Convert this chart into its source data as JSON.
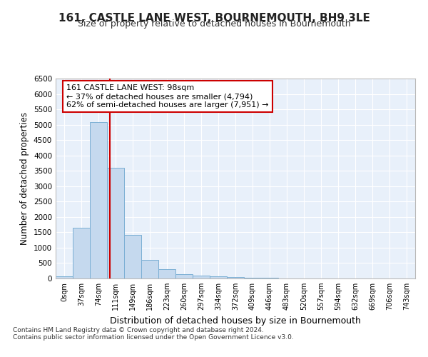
{
  "title": "161, CASTLE LANE WEST, BOURNEMOUTH, BH9 3LE",
  "subtitle": "Size of property relative to detached houses in Bournemouth",
  "xlabel": "Distribution of detached houses by size in Bournemouth",
  "ylabel": "Number of detached properties",
  "bar_labels": [
    "0sqm",
    "37sqm",
    "74sqm",
    "111sqm",
    "149sqm",
    "186sqm",
    "223sqm",
    "260sqm",
    "297sqm",
    "334sqm",
    "372sqm",
    "409sqm",
    "446sqm",
    "483sqm",
    "520sqm",
    "557sqm",
    "594sqm",
    "632sqm",
    "669sqm",
    "706sqm",
    "743sqm"
  ],
  "bar_values": [
    75,
    1650,
    5080,
    3600,
    1420,
    610,
    300,
    150,
    100,
    60,
    40,
    25,
    15,
    8,
    4,
    2,
    1,
    1,
    0,
    0,
    0
  ],
  "bar_color": "#c5d9ee",
  "bar_edge_color": "#7bafd4",
  "vline_color": "#cc0000",
  "annotation_text": "161 CASTLE LANE WEST: 98sqm\n← 37% of detached houses are smaller (4,794)\n62% of semi-detached houses are larger (7,951) →",
  "annotation_box_color": "#ffffff",
  "annotation_box_edge": "#cc0000",
  "ylim": [
    0,
    6500
  ],
  "yticks": [
    0,
    500,
    1000,
    1500,
    2000,
    2500,
    3000,
    3500,
    4000,
    4500,
    5000,
    5500,
    6000,
    6500
  ],
  "bg_color": "#e8f0fa",
  "footer_line1": "Contains HM Land Registry data © Crown copyright and database right 2024.",
  "footer_line2": "Contains public sector information licensed under the Open Government Licence v3.0."
}
